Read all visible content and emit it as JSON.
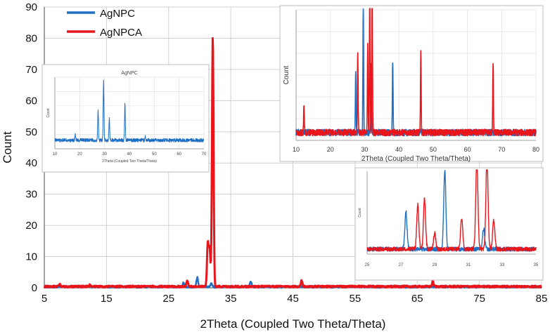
{
  "chart_data": [
    {
      "type": "line",
      "xlabel": "2Theta (Coupled Two Theta/Theta)",
      "ylabel": "Count",
      "xlim": [
        5,
        85
      ],
      "ylim": [
        0,
        90
      ],
      "xticks": [
        "5",
        "15",
        "25",
        "35",
        "45",
        "55",
        "65",
        "75",
        "85"
      ],
      "yticks": [
        "0",
        "10",
        "20",
        "30",
        "40",
        "50",
        "60",
        "70",
        "80",
        "90"
      ],
      "grid": true,
      "legend_position": "top-left",
      "series": [
        {
          "name": "AgNPC",
          "color": "#1f6fc4",
          "baseline": 0.3,
          "peaks": [
            [
              27.4,
              1.5
            ],
            [
              29.6,
              3.0
            ],
            [
              31.9,
              1.2
            ],
            [
              38.2,
              1.7
            ]
          ]
        },
        {
          "name": "AgNPCA",
          "color": "#e8161b",
          "baseline": 0.4,
          "peaks": [
            [
              7.5,
              0.6
            ],
            [
              12.3,
              0.5
            ],
            [
              28.0,
              2.0
            ],
            [
              31.3,
              14.0
            ],
            [
              31.6,
              12.0
            ],
            [
              32.1,
              80.0
            ],
            [
              46.4,
              1.9
            ],
            [
              67.5,
              1.6
            ]
          ]
        }
      ]
    },
    {
      "type": "line",
      "title": "AgNPC",
      "xlabel": "2Theta (Coupled Two Theta/Theta)",
      "ylabel": "Count",
      "xlim": [
        10,
        70
      ],
      "xticks": [
        "10",
        "20",
        "30",
        "40",
        "50",
        "60",
        "70"
      ],
      "series": [
        {
          "color": "#1f6fc4",
          "baseline": 0.12,
          "peaks": [
            [
              27.4,
              0.4
            ],
            [
              29.6,
              0.83
            ],
            [
              31.9,
              0.3
            ],
            [
              38.2,
              0.5
            ],
            [
              18.2,
              0.07
            ],
            [
              46.4,
              0.06
            ]
          ]
        }
      ]
    },
    {
      "type": "line",
      "xlabel": "2Theta (Coupled Two Theta/Theta)",
      "ylabel": "Count",
      "xlim": [
        10,
        80
      ],
      "xticks": [
        "10",
        "20",
        "30",
        "40",
        "50",
        "60",
        "70",
        "80"
      ],
      "series": [
        {
          "color": "#1f6fc4",
          "baseline": 0.06,
          "peaks": [
            [
              27.4,
              0.48
            ],
            [
              29.6,
              0.97
            ],
            [
              31.9,
              0.55
            ],
            [
              38.2,
              0.55
            ]
          ]
        },
        {
          "color": "#e8161b",
          "baseline": 0.06,
          "peaks": [
            [
              12.3,
              0.2
            ],
            [
              28.0,
              0.62
            ],
            [
              30.9,
              0.67
            ],
            [
              31.5,
              1.1
            ],
            [
              32.2,
              1.1
            ],
            [
              46.4,
              0.62
            ],
            [
              67.5,
              0.55
            ]
          ]
        }
      ]
    },
    {
      "type": "line",
      "xlabel": "",
      "ylabel": "Count",
      "xlim": [
        25,
        35
      ],
      "xticks": [
        "25",
        "27",
        "29",
        "31",
        "33",
        "35"
      ],
      "series": [
        {
          "color": "#1f6fc4",
          "baseline": 0.06,
          "peaks": [
            [
              27.3,
              0.45
            ],
            [
              29.6,
              0.95
            ],
            [
              31.9,
              0.25
            ]
          ]
        },
        {
          "color": "#e8161b",
          "baseline": 0.06,
          "peaks": [
            [
              28.0,
              0.53
            ],
            [
              28.4,
              0.6
            ],
            [
              29.0,
              0.19
            ],
            [
              30.6,
              0.38
            ],
            [
              31.5,
              1.1
            ],
            [
              32.1,
              1.1
            ],
            [
              32.5,
              0.35
            ]
          ]
        }
      ]
    }
  ]
}
